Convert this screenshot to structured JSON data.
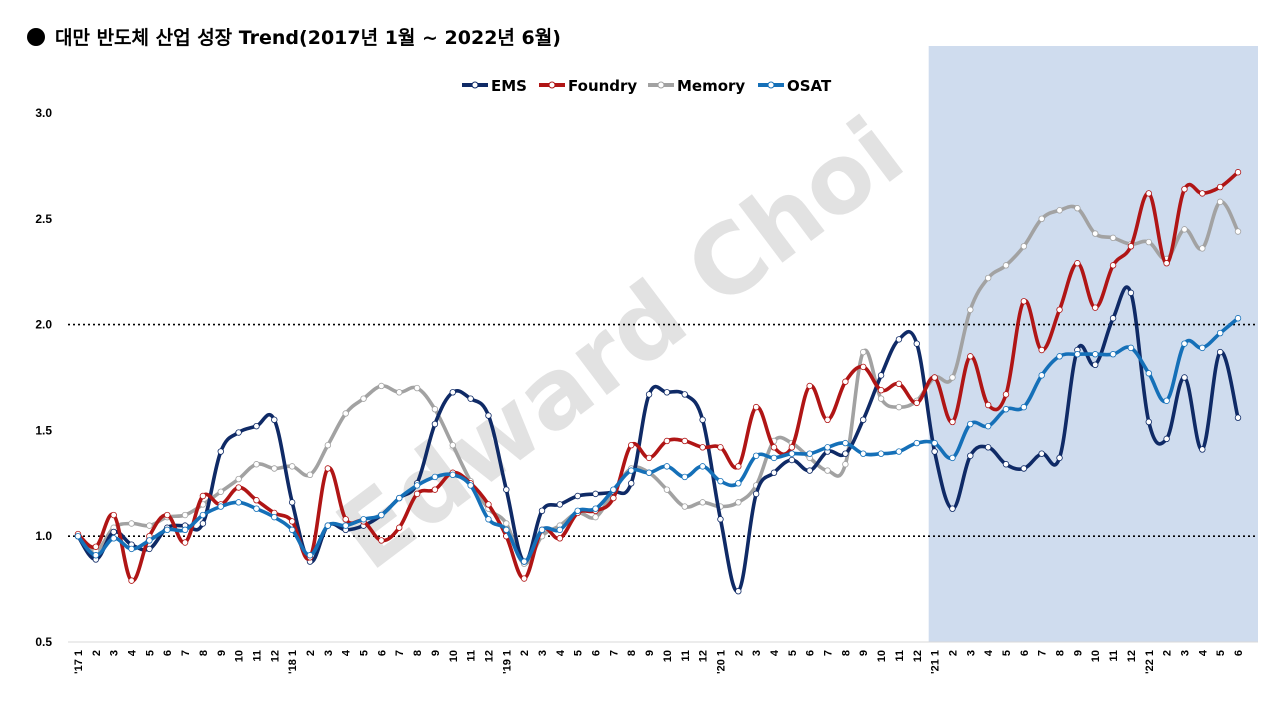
{
  "title": "대만 반도체 산업 성장 Trend(2017년 1월 ~ 2022년 6월)",
  "watermark": "Edward Choi",
  "chart_data": {
    "type": "line",
    "title": "대만 반도체 산업 성장 Trend(2017년 1월 ~ 2022년 6월)",
    "xlabel": "",
    "ylabel": "",
    "ylim": [
      0.5,
      3.0
    ],
    "yticks": [
      "3.0",
      "2.5",
      "2.0",
      "1.5",
      "1.0",
      "0.5"
    ],
    "reference_lines": [
      1.0,
      2.0
    ],
    "legend_position": "top-center",
    "highlight_region": {
      "from_index": 48,
      "to_index": 65,
      "color": "#cfdcee"
    },
    "categories": [
      "'17 1",
      "2",
      "3",
      "4",
      "5",
      "6",
      "7",
      "8",
      "9",
      "10",
      "11",
      "12",
      "'18 1",
      "2",
      "3",
      "4",
      "5",
      "6",
      "7",
      "8",
      "9",
      "10",
      "11",
      "12",
      "'19 1",
      "2",
      "3",
      "4",
      "5",
      "6",
      "7",
      "8",
      "9",
      "10",
      "11",
      "12",
      "'20 1",
      "2",
      "3",
      "4",
      "5",
      "6",
      "7",
      "8",
      "9",
      "10",
      "11",
      "12",
      "'21 1",
      "2",
      "3",
      "4",
      "5",
      "6",
      "7",
      "8",
      "9",
      "10",
      "11",
      "12",
      "'22 1",
      "2",
      "3",
      "4",
      "5",
      "6"
    ],
    "series": [
      {
        "name": "EMS",
        "color": "#0f2a66",
        "values": [
          1.0,
          0.89,
          1.02,
          0.96,
          0.94,
          1.04,
          1.05,
          1.06,
          1.4,
          1.49,
          1.52,
          1.55,
          1.16,
          0.88,
          1.05,
          1.03,
          1.05,
          1.1,
          1.18,
          1.25,
          1.53,
          1.68,
          1.65,
          1.57,
          1.22,
          0.88,
          1.12,
          1.15,
          1.19,
          1.2,
          1.21,
          1.25,
          1.67,
          1.68,
          1.67,
          1.55,
          1.08,
          0.74,
          1.2,
          1.3,
          1.36,
          1.31,
          1.4,
          1.39,
          1.55,
          1.76,
          1.93,
          1.91,
          1.4,
          1.13,
          1.38,
          1.42,
          1.34,
          1.32,
          1.39,
          1.37,
          1.88,
          1.81,
          2.03,
          2.15,
          1.54,
          1.46,
          1.75,
          1.41,
          1.87,
          1.56
        ]
      },
      {
        "name": "Foundry",
        "color": "#b01515",
        "values": [
          1.01,
          0.95,
          1.1,
          0.79,
          1.0,
          1.1,
          0.97,
          1.19,
          1.15,
          1.23,
          1.17,
          1.11,
          1.07,
          0.9,
          1.32,
          1.08,
          1.07,
          0.98,
          1.04,
          1.2,
          1.22,
          1.3,
          1.25,
          1.15,
          1.0,
          0.8,
          1.03,
          0.99,
          1.11,
          1.12,
          1.18,
          1.43,
          1.37,
          1.45,
          1.45,
          1.42,
          1.42,
          1.33,
          1.61,
          1.42,
          1.42,
          1.71,
          1.55,
          1.73,
          1.8,
          1.69,
          1.72,
          1.63,
          1.75,
          1.54,
          1.85,
          1.62,
          1.67,
          2.11,
          1.88,
          2.07,
          2.29,
          2.08,
          2.28,
          2.37,
          2.62,
          2.29,
          2.64,
          2.62,
          2.65,
          2.72
        ]
      },
      {
        "name": "Memory",
        "color": "#a2a2a2",
        "values": [
          1.0,
          0.93,
          1.04,
          1.06,
          1.05,
          1.09,
          1.1,
          1.15,
          1.21,
          1.27,
          1.34,
          1.32,
          1.33,
          1.29,
          1.43,
          1.58,
          1.65,
          1.71,
          1.68,
          1.7,
          1.6,
          1.43,
          1.26,
          1.13,
          1.06,
          0.87,
          1.0,
          1.05,
          1.11,
          1.09,
          1.21,
          1.32,
          1.3,
          1.22,
          1.14,
          1.16,
          1.14,
          1.16,
          1.24,
          1.45,
          1.44,
          1.37,
          1.31,
          1.34,
          1.87,
          1.65,
          1.61,
          1.64,
          1.75,
          1.75,
          2.07,
          2.22,
          2.28,
          2.37,
          2.5,
          2.54,
          2.55,
          2.43,
          2.41,
          2.38,
          2.39,
          2.31,
          2.45,
          2.36,
          2.58,
          2.44
        ]
      },
      {
        "name": "OSAT",
        "color": "#1570b8",
        "values": [
          1.0,
          0.91,
          0.99,
          0.94,
          0.98,
          1.03,
          1.03,
          1.1,
          1.14,
          1.16,
          1.13,
          1.09,
          1.03,
          0.91,
          1.05,
          1.05,
          1.08,
          1.1,
          1.18,
          1.24,
          1.28,
          1.29,
          1.24,
          1.08,
          1.03,
          0.88,
          1.03,
          1.03,
          1.12,
          1.13,
          1.22,
          1.31,
          1.3,
          1.33,
          1.28,
          1.33,
          1.26,
          1.25,
          1.38,
          1.37,
          1.39,
          1.39,
          1.42,
          1.44,
          1.39,
          1.39,
          1.4,
          1.44,
          1.44,
          1.37,
          1.53,
          1.52,
          1.6,
          1.61,
          1.76,
          1.85,
          1.86,
          1.86,
          1.86,
          1.89,
          1.77,
          1.64,
          1.91,
          1.89,
          1.96,
          2.03
        ]
      }
    ]
  }
}
